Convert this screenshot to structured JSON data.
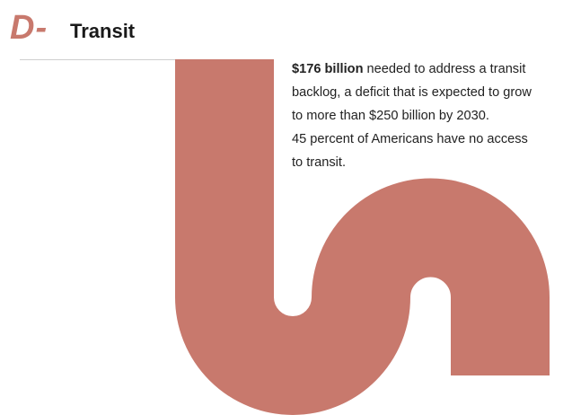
{
  "header": {
    "grade": "D-",
    "title": "Transit"
  },
  "body": {
    "first_line": {
      "bold": "$176 billion",
      "text": " needed to address a transit"
    },
    "lines": [
      "backlog, a deficit that is expected to grow",
      "to more than $250 billion by 2030.",
      "45 percent of Americans have no access",
      "to transit."
    ]
  }
}
